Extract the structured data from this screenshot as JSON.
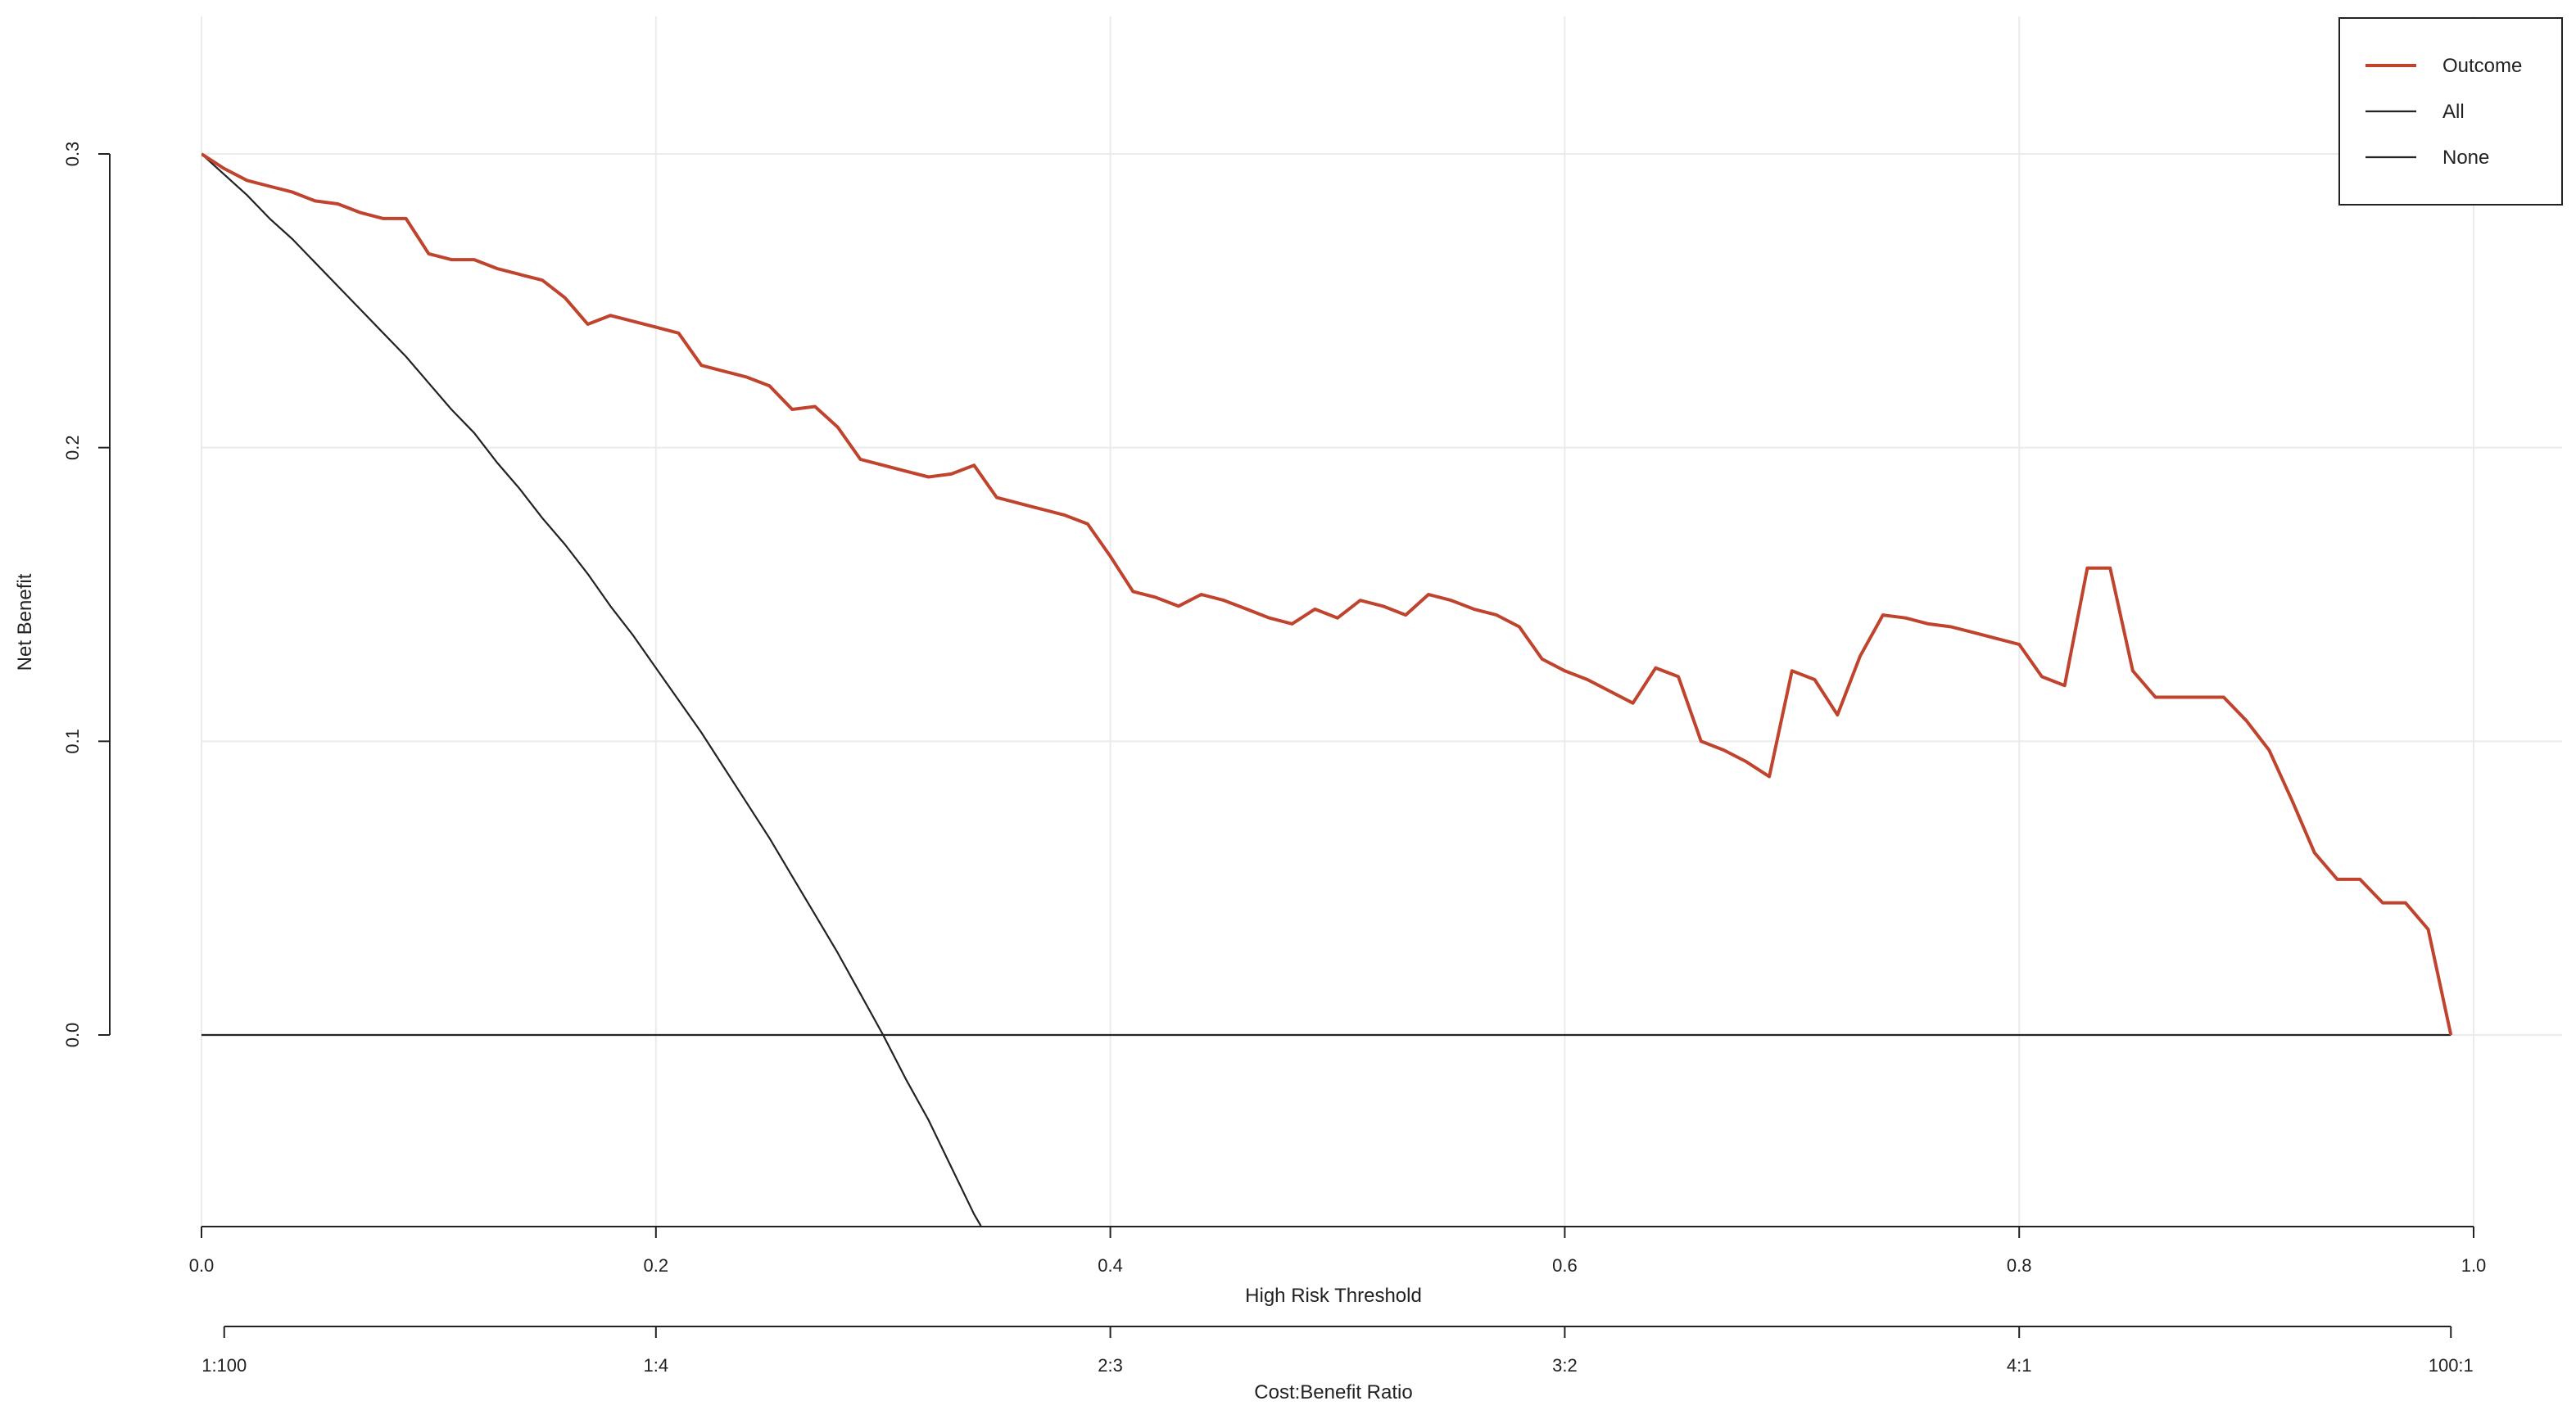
{
  "chart_data": {
    "type": "line",
    "title": "",
    "xlabel": "High Risk Threshold",
    "ylabel": "Net Benefit",
    "secondary_xlabel": "Cost:Benefit Ratio",
    "xlim": [
      0,
      1
    ],
    "ylim": [
      -0.065,
      0.345
    ],
    "grid": true,
    "legend_position": "top-right",
    "x_ticks": [
      "0.0",
      "0.2",
      "0.4",
      "0.6",
      "0.8",
      "1.0"
    ],
    "y_ticks": [
      "0.0",
      "0.1",
      "0.2",
      "0.3"
    ],
    "cost_benefit_ticks": [
      "1:100",
      "1:4",
      "2:3",
      "3:2",
      "4:1",
      "100:1"
    ],
    "series": [
      {
        "name": "Outcome",
        "color": "#c0432e",
        "x": [
          0.0,
          0.01,
          0.02,
          0.03,
          0.04,
          0.05,
          0.06,
          0.07,
          0.08,
          0.09,
          0.1,
          0.11,
          0.12,
          0.13,
          0.14,
          0.15,
          0.16,
          0.17,
          0.18,
          0.19,
          0.2,
          0.21,
          0.22,
          0.23,
          0.24,
          0.25,
          0.26,
          0.27,
          0.28,
          0.29,
          0.3,
          0.31,
          0.32,
          0.33,
          0.34,
          0.35,
          0.36,
          0.37,
          0.38,
          0.39,
          0.4,
          0.41,
          0.42,
          0.43,
          0.44,
          0.45,
          0.46,
          0.47,
          0.48,
          0.49,
          0.5,
          0.51,
          0.52,
          0.53,
          0.54,
          0.55,
          0.56,
          0.57,
          0.58,
          0.59,
          0.6,
          0.61,
          0.62,
          0.63,
          0.64,
          0.65,
          0.66,
          0.67,
          0.68,
          0.69,
          0.7,
          0.71,
          0.72,
          0.73,
          0.74,
          0.75,
          0.76,
          0.77,
          0.78,
          0.79,
          0.8,
          0.81,
          0.82,
          0.83,
          0.84,
          0.85,
          0.86,
          0.87,
          0.88,
          0.89,
          0.9,
          0.91,
          0.92,
          0.93,
          0.94,
          0.95,
          0.96,
          0.97,
          0.98,
          0.99
        ],
        "y": [
          0.3,
          0.295,
          0.291,
          0.289,
          0.287,
          0.284,
          0.283,
          0.28,
          0.278,
          0.278,
          0.266,
          0.264,
          0.264,
          0.261,
          0.259,
          0.257,
          0.251,
          0.242,
          0.245,
          0.243,
          0.241,
          0.239,
          0.228,
          0.226,
          0.224,
          0.221,
          0.213,
          0.214,
          0.207,
          0.196,
          0.194,
          0.192,
          0.19,
          0.191,
          0.194,
          0.183,
          0.181,
          0.179,
          0.177,
          0.174,
          0.163,
          0.151,
          0.149,
          0.146,
          0.15,
          0.148,
          0.145,
          0.142,
          0.14,
          0.145,
          0.142,
          0.148,
          0.146,
          0.143,
          0.15,
          0.148,
          0.145,
          0.143,
          0.139,
          0.128,
          0.124,
          0.121,
          0.117,
          0.113,
          0.125,
          0.122,
          0.1,
          0.097,
          0.093,
          0.088,
          0.124,
          0.121,
          0.109,
          0.129,
          0.143,
          0.142,
          0.14,
          0.139,
          0.137,
          0.135,
          0.133,
          0.122,
          0.119,
          0.159,
          0.159,
          0.124,
          0.115,
          0.115,
          0.115,
          0.115,
          0.107,
          0.097,
          0.08,
          0.062,
          0.053,
          0.053,
          0.045,
          0.045,
          0.036,
          0.0
        ]
      },
      {
        "name": "All",
        "color": "#222222",
        "x": [
          0.0,
          0.01,
          0.02,
          0.03,
          0.04,
          0.05,
          0.06,
          0.07,
          0.08,
          0.09,
          0.1,
          0.11,
          0.12,
          0.13,
          0.14,
          0.15,
          0.16,
          0.17,
          0.18,
          0.19,
          0.2,
          0.21,
          0.22,
          0.23,
          0.24,
          0.25,
          0.26,
          0.27,
          0.28,
          0.29,
          0.3,
          0.31,
          0.32,
          0.33,
          0.34,
          0.343
        ],
        "y": [
          0.3,
          0.293,
          0.286,
          0.278,
          0.271,
          0.263,
          0.255,
          0.247,
          0.239,
          0.231,
          0.222,
          0.213,
          0.205,
          0.195,
          0.186,
          0.176,
          0.167,
          0.157,
          0.146,
          0.136,
          0.125,
          0.114,
          0.103,
          0.091,
          0.079,
          0.067,
          0.054,
          0.041,
          0.028,
          0.014,
          0.0,
          -0.015,
          -0.029,
          -0.045,
          -0.061,
          -0.065
        ]
      },
      {
        "name": "None",
        "color": "#222222",
        "x": [
          0.0,
          0.99
        ],
        "y": [
          0.0,
          0.0
        ]
      }
    ]
  }
}
